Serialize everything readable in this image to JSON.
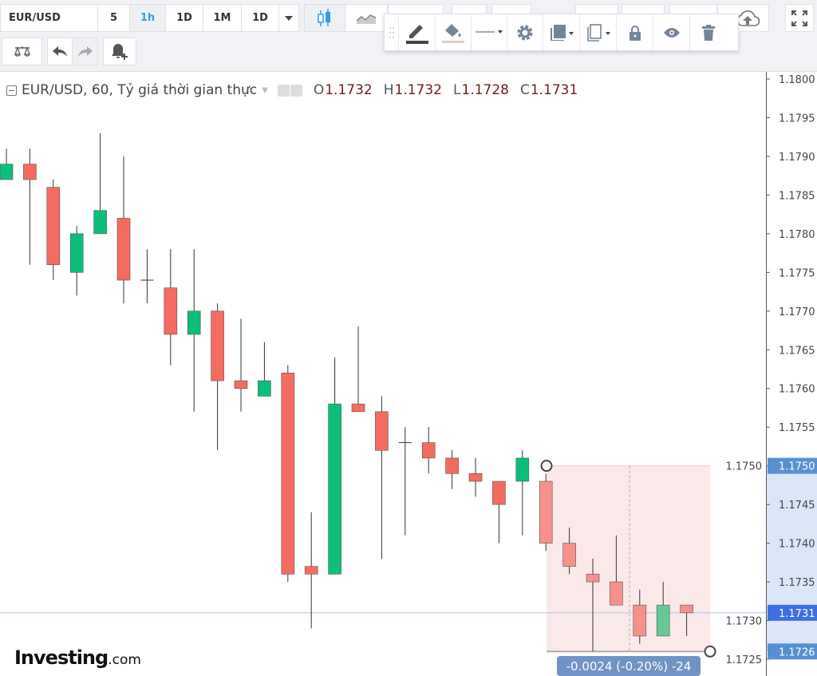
{
  "toolbar": {
    "symbol": "EUR/USD",
    "intervals": [
      {
        "label": "5",
        "active": false
      },
      {
        "label": "1h",
        "active": true
      },
      {
        "label": "1D",
        "active": false
      },
      {
        "label": "1M",
        "active": false
      },
      {
        "label": "1D",
        "active": false
      }
    ],
    "icons": [
      "interval-dropdown-icon",
      "candlestick-icon",
      "line-chart-icon",
      "cloud-upload-icon",
      "fullscreen-icon",
      "compare-scale-icon",
      "undo-icon",
      "redo-icon",
      "add-alert-icon"
    ]
  },
  "drawing_toolbar": {
    "icons": [
      "drag-handle-icon",
      "pencil-icon",
      "paint-bucket-icon",
      "line-style-icon",
      "gear-icon",
      "bring-front-icon",
      "clone-icon",
      "lock-icon",
      "eye-icon",
      "trash-icon"
    ]
  },
  "legend": {
    "title": "EUR/USD, 60, Tỷ giá thời gian thực",
    "o_label": "O",
    "o": "1.1732",
    "h_label": "H",
    "h": "1.1732",
    "l_label": "L",
    "l": "1.1728",
    "c_label": "C",
    "c": "1.1731"
  },
  "brand": {
    "name": "Investing",
    "suffix": ".com"
  },
  "measure": {
    "label": "-0.0024 (-0.20%) -24",
    "color": "#6f93c4",
    "from": 1.175,
    "to": 1.1726,
    "fill": "#fbe9ea"
  },
  "colors": {
    "up": "#089981",
    "up_fill": "#0bbf7a",
    "down": "#f56b5f",
    "current_line": "#aac4ea",
    "current_badge": "#3d6fe0",
    "measure_badge": "#5591d2"
  },
  "price_axis": {
    "ticks": [
      "1.1800",
      "1.1795",
      "1.1790",
      "1.1785",
      "1.1780",
      "1.1775",
      "1.1770",
      "1.1765",
      "1.1760",
      "1.1755",
      "1.1750",
      "1.1745",
      "1.1740",
      "1.1735",
      "1.1730",
      "1.1725"
    ],
    "current": "1.1731",
    "badge_high": "1.1750",
    "badge_low": "1.1726",
    "range": [
      1.1725,
      1.18
    ]
  },
  "chart_data": {
    "type": "candlestick",
    "symbol": "EUR/USD",
    "interval": "60",
    "ohlc": [
      [
        1.1787,
        1.1791,
        1.1787,
        1.1789
      ],
      [
        1.1789,
        1.1791,
        1.1776,
        1.1787
      ],
      [
        1.1786,
        1.1787,
        1.1774,
        1.1776
      ],
      [
        1.1775,
        1.1781,
        1.1772,
        1.178
      ],
      [
        1.178,
        1.1793,
        1.178,
        1.1783
      ],
      [
        1.1782,
        1.179,
        1.1771,
        1.1774
      ],
      [
        1.1774,
        1.1778,
        1.1771,
        1.1774
      ],
      [
        1.1773,
        1.1778,
        1.1763,
        1.1767
      ],
      [
        1.1767,
        1.1778,
        1.1757,
        1.177
      ],
      [
        1.177,
        1.1771,
        1.1752,
        1.1761
      ],
      [
        1.1761,
        1.1769,
        1.1757,
        1.176
      ],
      [
        1.1759,
        1.1766,
        1.1759,
        1.1761
      ],
      [
        1.1762,
        1.1763,
        1.1735,
        1.1736
      ],
      [
        1.1737,
        1.1744,
        1.1729,
        1.1736
      ],
      [
        1.1736,
        1.1764,
        1.1736,
        1.1758
      ],
      [
        1.1758,
        1.1768,
        1.1757,
        1.1757
      ],
      [
        1.1757,
        1.1759,
        1.1738,
        1.1752
      ],
      [
        1.1753,
        1.1755,
        1.1741,
        1.1753
      ],
      [
        1.1753,
        1.1755,
        1.1749,
        1.1751
      ],
      [
        1.1751,
        1.1752,
        1.1747,
        1.1749
      ],
      [
        1.1749,
        1.1751,
        1.1746,
        1.1748
      ],
      [
        1.1748,
        1.1748,
        1.174,
        1.1745
      ],
      [
        1.1748,
        1.1752,
        1.1741,
        1.1751
      ],
      [
        1.1748,
        1.1749,
        1.1739,
        1.174
      ],
      [
        1.174,
        1.1742,
        1.1736,
        1.1737
      ],
      [
        1.1736,
        1.1738,
        1.1726,
        1.1735
      ],
      [
        1.1735,
        1.1741,
        1.1732,
        1.1732
      ],
      [
        1.1732,
        1.1734,
        1.1727,
        1.1728
      ],
      [
        1.1728,
        1.1735,
        1.1728,
        1.1732
      ],
      [
        1.1732,
        1.1732,
        1.1728,
        1.1731
      ]
    ],
    "ylim": [
      1.1725,
      1.18
    ]
  }
}
